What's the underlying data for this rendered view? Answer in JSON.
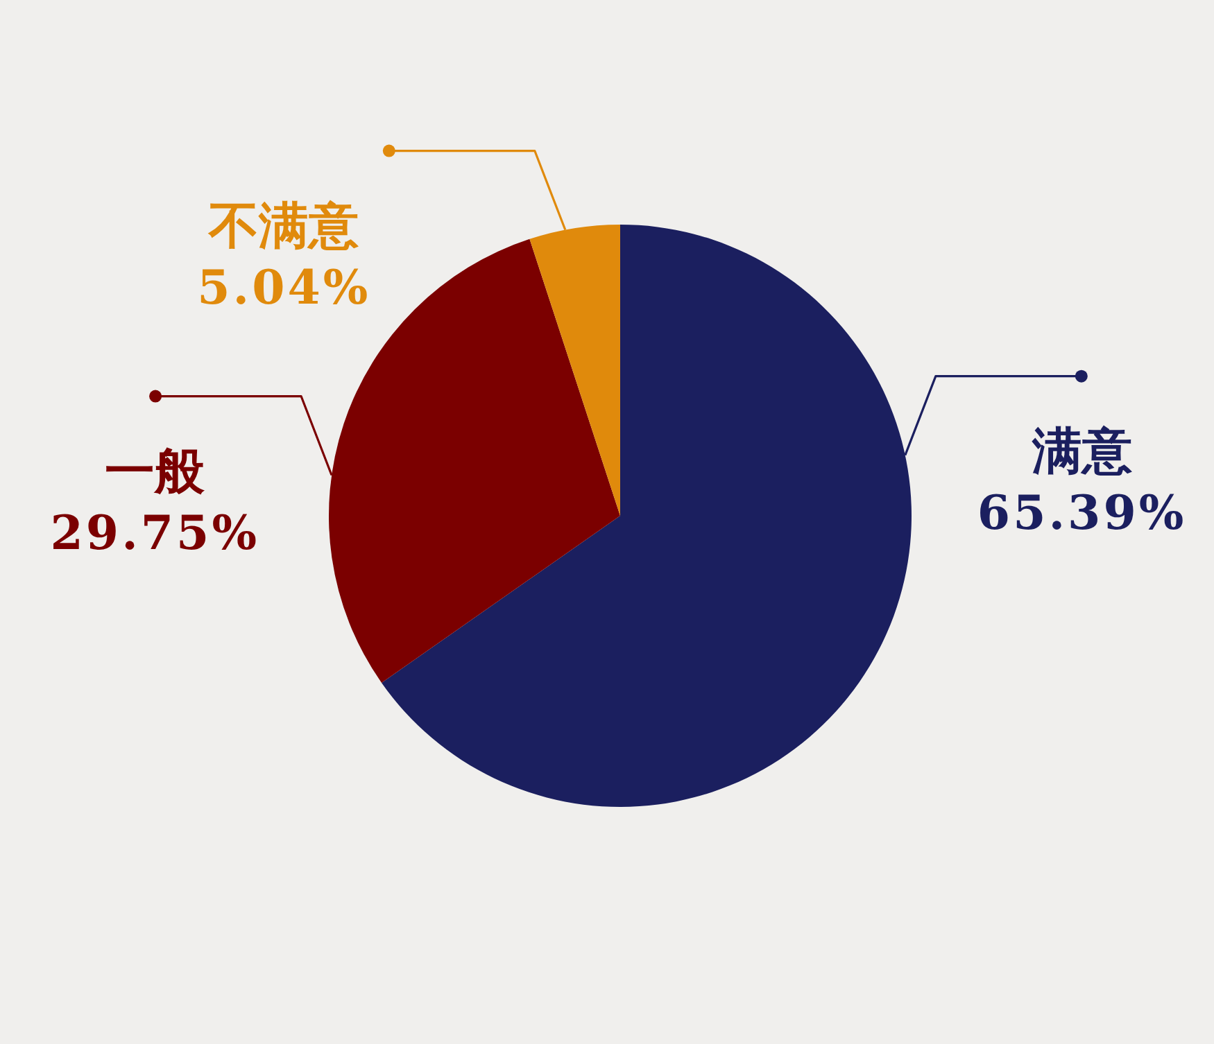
{
  "chart_data": {
    "type": "pie",
    "categories": [
      "满意",
      "一般",
      "不满意"
    ],
    "values": [
      65.39,
      29.75,
      5.04
    ],
    "colors": [
      "#1b1f5f",
      "#7b0000",
      "#e08a0c"
    ],
    "value_labels": [
      "65.39%",
      "29.75%",
      "5.04%"
    ]
  }
}
